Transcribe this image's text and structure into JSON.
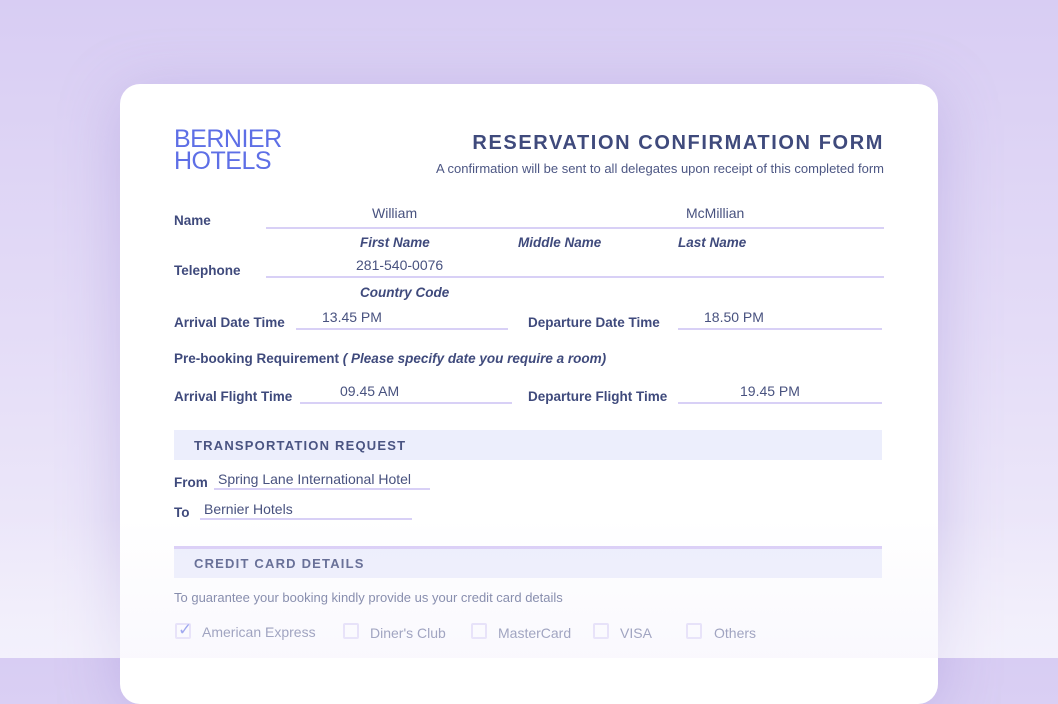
{
  "logo": {
    "line1": "BERNIER",
    "line2": "HOTELS"
  },
  "header": {
    "title": "RESERVATION CONFIRMATION FORM",
    "subtitle": "A confirmation will be sent to all delegates upon receipt of this completed form"
  },
  "name": {
    "label": "Name",
    "first": "William",
    "last": "McMillian",
    "first_hint": "First Name",
    "middle_hint": "Middle Name",
    "last_hint": "Last Name"
  },
  "telephone": {
    "label": "Telephone",
    "value": "281-540-0076",
    "hint": "Country Code"
  },
  "arrival_date": {
    "label": "Arrival Date Time",
    "value": "13.45 PM"
  },
  "departure_date": {
    "label": "Departure Date Time",
    "value": "18.50 PM"
  },
  "prebooking": {
    "label": "Pre-booking Requirement",
    "note": "( Please specify date you require a room)"
  },
  "arrival_flight": {
    "label": "Arrival Flight Time",
    "value": "09.45 AM"
  },
  "departure_flight": {
    "label": "Departure Flight Time",
    "value": "19.45 PM"
  },
  "transport": {
    "title": "TRANSPORTATION REQUEST",
    "from_label": "From",
    "from": "Spring Lane International Hotel",
    "to_label": "To",
    "to": "Bernier Hotels"
  },
  "credit": {
    "title": "CREDIT CARD DETAILS",
    "text": "To guarantee your booking kindly provide us your credit card details",
    "options": [
      {
        "label": "American Express",
        "checked": true
      },
      {
        "label": "Diner's Club",
        "checked": false
      },
      {
        "label": "MasterCard",
        "checked": false
      },
      {
        "label": "VISA",
        "checked": false
      },
      {
        "label": "Others",
        "checked": false
      }
    ]
  },
  "colors": {
    "accent": "#5e6fe6",
    "text": "#3f4a7c",
    "line": "#d8d0f6",
    "section": "#eceefc"
  }
}
